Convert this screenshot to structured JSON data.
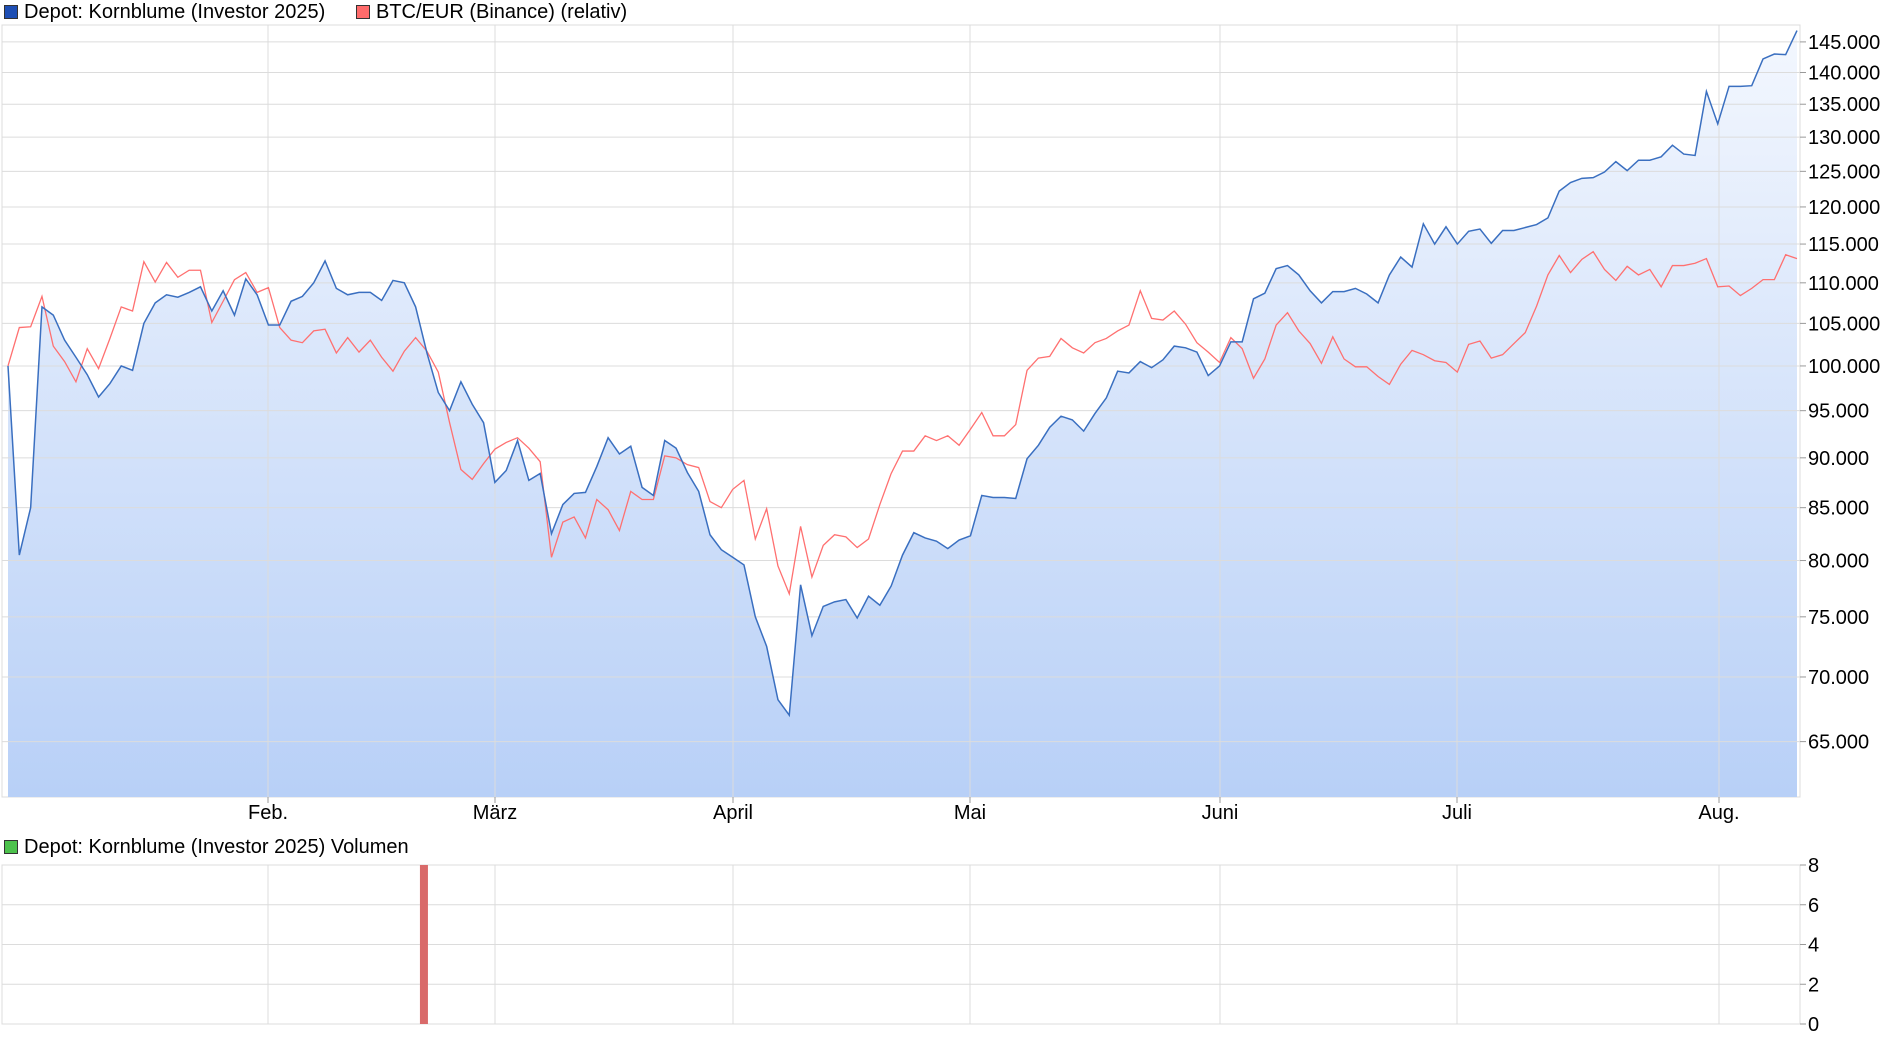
{
  "legend_main": [
    {
      "label": "Depot: Kornblume (Investor 2025)",
      "color": "#1e4fb4"
    },
    {
      "label": "BTC/EUR (Binance) (relativ)",
      "color": "#ff6b6b"
    }
  ],
  "legend_volume": {
    "label": "Depot: Kornblume (Investor 2025) Volumen",
    "color": "#4cc24c"
  },
  "colors": {
    "depot_line": "#3a6fc0",
    "btc_line": "#ff7070",
    "area_top": "#f3f7fe",
    "area_bottom": "#b8d0f7",
    "grid": "#dcdcdc",
    "volume_bar": "#d96a6a"
  },
  "chart_data": [
    {
      "type": "line",
      "title": "",
      "xlabel": "",
      "ylabel": "",
      "scale": "log",
      "ylim": [
        61000,
        147500
      ],
      "y_ticks": [
        65000,
        70000,
        75000,
        80000,
        85000,
        90000,
        95000,
        100000,
        105000,
        110000,
        115000,
        120000,
        125000,
        130000,
        135000,
        140000,
        145000
      ],
      "y_tick_labels": [
        "65.000",
        "70.000",
        "75.000",
        "80.000",
        "85.000",
        "90.000",
        "95.000",
        "100.000",
        "105.000",
        "110.000",
        "115.000",
        "120.000",
        "125.000",
        "130.000",
        "135.000",
        "140.000",
        "145.000"
      ],
      "x_ticks": [
        "Feb.",
        "März",
        "April",
        "Mai",
        "Juni",
        "Juli",
        "Aug."
      ],
      "grid": true,
      "legend_position": "top-left",
      "series": [
        {
          "name": "Depot: Kornblume (Investor 2025)",
          "fill": "area",
          "values": [
            100000,
            80500,
            85000,
            107000,
            106000,
            103000,
            101000,
            99000,
            96500,
            98000,
            100000,
            99500,
            105000,
            107500,
            108500,
            108200,
            108800,
            109500,
            106500,
            109000,
            106000,
            110500,
            108500,
            104800,
            104800,
            107700,
            108300,
            110000,
            112800,
            109300,
            108500,
            108800,
            108800,
            107800,
            110300,
            110000,
            107000,
            101500,
            97000,
            95000,
            98200,
            95700,
            93700,
            87500,
            88700,
            91800,
            87700,
            88400,
            82500,
            85300,
            86400,
            86500,
            89100,
            92100,
            90400,
            91200,
            87000,
            86200,
            91800,
            91000,
            88500,
            86600,
            82400,
            81000,
            80300,
            79600,
            75000,
            72500,
            68200,
            67000,
            77800,
            73400,
            75900,
            76300,
            76500,
            74900,
            76800,
            76000,
            77700,
            80500,
            82600,
            82100,
            81800,
            81100,
            81900,
            82300,
            86200,
            86000,
            86000,
            85900,
            89900,
            91300,
            93200,
            94400,
            94000,
            92800,
            94700,
            96400,
            99400,
            99200,
            100500,
            99800,
            100700,
            102300,
            102100,
            101600,
            98900,
            100000,
            102800,
            102800,
            108000,
            108700,
            111800,
            112200,
            111000,
            109000,
            107500,
            108900,
            108900,
            109300,
            108600,
            107500,
            111000,
            113300,
            112000,
            117700,
            115000,
            117300,
            115000,
            116700,
            117000,
            115100,
            116800,
            116800,
            117200,
            117600,
            118500,
            122200,
            123400,
            124000,
            124100,
            124900,
            126400,
            125100,
            126600,
            126600,
            127100,
            128800,
            127500,
            127300,
            137000,
            132000,
            137800,
            137800,
            137900,
            142200,
            143000,
            142900,
            146900
          ]
        },
        {
          "name": "BTC/EUR (Binance) (relativ)",
          "fill": "none",
          "values": [
            100000,
            104500,
            104600,
            108300,
            102300,
            100500,
            98200,
            102000,
            99700,
            103200,
            107000,
            106500,
            112700,
            110100,
            112600,
            110700,
            111600,
            111600,
            105100,
            107700,
            110400,
            111300,
            108800,
            109400,
            104500,
            103000,
            102700,
            104100,
            104300,
            101500,
            103300,
            101600,
            103000,
            101000,
            99400,
            101700,
            103300,
            101700,
            99300,
            93700,
            88800,
            87800,
            89400,
            90900,
            91600,
            92100,
            91000,
            89600,
            80300,
            83600,
            84100,
            82100,
            85800,
            84800,
            82800,
            86600,
            85800,
            85800,
            90200,
            90000,
            89300,
            89000,
            85600,
            85000,
            86800,
            87700,
            82000,
            84900,
            79500,
            77000,
            83200,
            78500,
            81400,
            82400,
            82200,
            81200,
            82000,
            85300,
            88400,
            90700,
            90700,
            92300,
            91800,
            92300,
            91300,
            93000,
            94800,
            92300,
            92300,
            93500,
            99500,
            100900,
            101100,
            103200,
            102100,
            101500,
            102700,
            103200,
            104100,
            104800,
            109000,
            105600,
            105400,
            106500,
            104900,
            102700,
            101600,
            100400,
            103300,
            102000,
            98600,
            100800,
            104800,
            106300,
            104100,
            102600,
            100300,
            103400,
            100800,
            99900,
            99900,
            98800,
            97900,
            100200,
            101800,
            101300,
            100600,
            100400,
            99300,
            102500,
            102900,
            100900,
            101300,
            102600,
            103900,
            107100,
            111000,
            113500,
            111300,
            113000,
            114000,
            111700,
            110300,
            112100,
            111000,
            111700,
            109500,
            112200,
            112200,
            112500,
            113100,
            109500,
            109600,
            108400,
            109300,
            110400,
            110400,
            113600,
            113100
          ]
        }
      ]
    },
    {
      "type": "bar",
      "title": "",
      "xlabel": "",
      "ylabel": "",
      "ylim": [
        0,
        8
      ],
      "y_ticks": [
        0,
        2,
        4,
        6,
        8
      ],
      "y_tick_labels": [
        "0",
        "2",
        "4",
        "6",
        "8"
      ],
      "grid": true,
      "series": [
        {
          "name": "Depot: Kornblume (Investor 2025) Volumen",
          "bars": [
            {
              "index": 37,
              "value": 8
            }
          ]
        }
      ]
    }
  ]
}
